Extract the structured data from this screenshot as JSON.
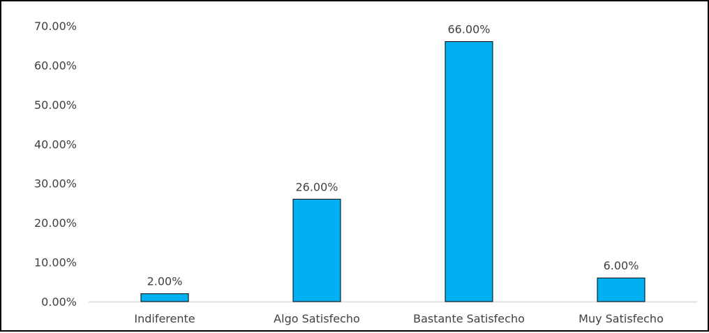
{
  "chart_data": {
    "type": "bar",
    "categories": [
      "Indiferente",
      "Algo Satisfecho",
      "Bastante Satisfecho",
      "Muy Satisfecho"
    ],
    "values": [
      2.0,
      26.0,
      66.0,
      6.0
    ],
    "data_labels": [
      "2.00%",
      "26.00%",
      "66.00%",
      "6.00%"
    ],
    "y_ticks": [
      "0.00%",
      "10.00%",
      "20.00%",
      "30.00%",
      "40.00%",
      "50.00%",
      "60.00%",
      "70.00%"
    ],
    "ylim": [
      0,
      70
    ],
    "y_unit": "%",
    "title": "",
    "xlabel": "",
    "ylabel": "",
    "grid": false,
    "legend": "none",
    "bar_color": "#00B0F0",
    "bar_edge_color": "#000000",
    "axis_color": "#D9D9D9",
    "text_color": "#404040"
  }
}
